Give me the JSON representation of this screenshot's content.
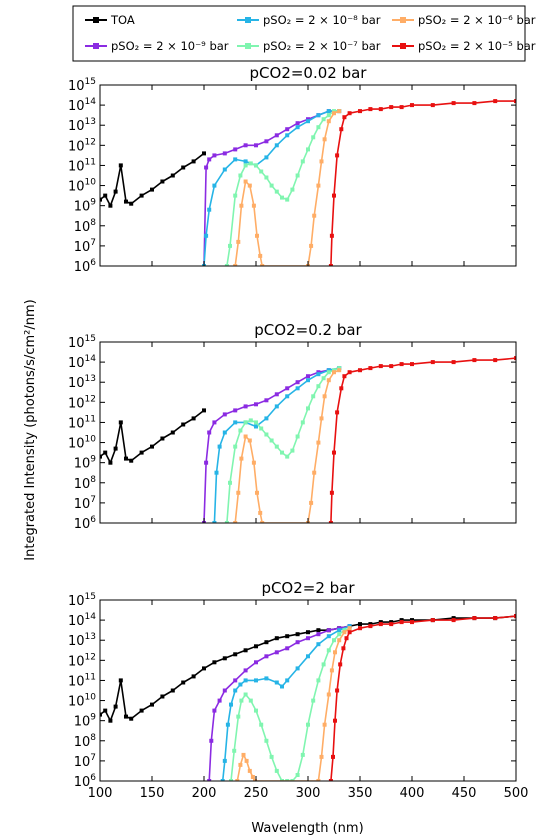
{
  "colors": {
    "toa": "#000000",
    "so2_2e9": "#8b2be2",
    "so2_2e8": "#26b4e6",
    "so2_2e7": "#80f5b0",
    "so2_2e6": "#ffad66",
    "so2_2e5": "#e81010"
  },
  "chart_data": {
    "type": "line",
    "xlabel": "Wavelength (nm)",
    "ylabel": "Integrated Intensity (photons/s/cm²/nm)",
    "xlim": [
      100,
      500
    ],
    "ylim": [
      1000000.0,
      1000000000000000.0
    ],
    "yscale": "log",
    "grid": false,
    "legend_placement": "top",
    "xticks": [
      "100",
      "150",
      "200",
      "250",
      "300",
      "350",
      "400",
      "450",
      "500"
    ],
    "ytick_base": "10",
    "ytick_exponents": [
      "6",
      "7",
      "8",
      "9",
      "10",
      "11",
      "12",
      "13",
      "14",
      "15"
    ],
    "legend": [
      {
        "key": "toa",
        "label": "TOA"
      },
      {
        "key": "so2_2e9",
        "label": "pSO₂ = 2 × 10⁻⁹ bar"
      },
      {
        "key": "so2_2e8",
        "label": "pSO₂ = 2 × 10⁻⁸ bar"
      },
      {
        "key": "so2_2e7",
        "label": "pSO₂ = 2 × 10⁻⁷ bar"
      },
      {
        "key": "so2_2e6",
        "label": "pSO₂ = 2 × 10⁻⁶ bar"
      },
      {
        "key": "so2_2e5",
        "label": "pSO₂ = 2 × 10⁻⁵ bar"
      }
    ],
    "panels": [
      {
        "title": "pCO2=0.02 bar",
        "series": [
          {
            "key": "toa",
            "x": [
              100,
              105,
              110,
              115,
              120,
              125,
              130,
              140,
              150,
              160,
              170,
              180,
              190,
              200
            ],
            "log10y": [
              9.3,
              9.5,
              9.0,
              9.7,
              11.0,
              9.2,
              9.1,
              9.5,
              9.8,
              10.2,
              10.5,
              10.9,
              11.2,
              11.6
            ]
          },
          {
            "key": "so2_2e9",
            "x": [
              200,
              202,
              205,
              210,
              220,
              230,
              240,
              250,
              260,
              270,
              280,
              290,
              300,
              310,
              320,
              330
            ],
            "log10y": [
              6.0,
              10.9,
              11.3,
              11.5,
              11.6,
              11.8,
              12.0,
              12.0,
              12.2,
              12.5,
              12.8,
              13.1,
              13.3,
              13.5,
              13.7,
              13.7
            ]
          },
          {
            "key": "so2_2e8",
            "x": [
              200,
              202,
              205,
              210,
              220,
              230,
              240,
              250,
              260,
              270,
              280,
              290,
              300,
              310,
              320,
              330
            ],
            "log10y": [
              6.0,
              7.5,
              8.8,
              10.0,
              10.8,
              11.3,
              11.2,
              11.0,
              11.4,
              12.0,
              12.5,
              12.9,
              13.2,
              13.5,
              13.7,
              13.7
            ]
          },
          {
            "key": "so2_2e7",
            "x": [
              222,
              225,
              230,
              235,
              240,
              245,
              250,
              255,
              260,
              265,
              270,
              275,
              280,
              285,
              290,
              295,
              300,
              305,
              310,
              315,
              320,
              325,
              330
            ],
            "log10y": [
              6.0,
              7.0,
              9.5,
              10.5,
              11.0,
              11.1,
              11.0,
              10.7,
              10.4,
              10.0,
              9.7,
              9.4,
              9.3,
              9.8,
              10.5,
              11.2,
              11.8,
              12.4,
              12.9,
              13.3,
              13.5,
              13.7,
              13.7
            ]
          },
          {
            "key": "so2_2e6",
            "x": [
              230,
              233,
              236,
              240,
              244,
              248,
              251,
              254,
              256,
              300,
              303,
              306,
              310,
              313,
              316,
              320,
              325,
              330
            ],
            "log10y": [
              6.0,
              7.2,
              9.0,
              10.2,
              10.0,
              9.0,
              7.5,
              6.5,
              6.0,
              6.0,
              7.0,
              8.5,
              10.0,
              11.2,
              12.3,
              13.2,
              13.6,
              13.7
            ]
          },
          {
            "key": "so2_2e5",
            "x": [
              322,
              323,
              325,
              328,
              332,
              335,
              340,
              350,
              360,
              370,
              380,
              390,
              400,
              420,
              440,
              460,
              480,
              500
            ],
            "log10y": [
              6.0,
              7.5,
              9.5,
              11.5,
              12.8,
              13.4,
              13.6,
              13.7,
              13.8,
              13.8,
              13.9,
              13.9,
              14.0,
              14.0,
              14.1,
              14.1,
              14.2,
              14.2
            ]
          }
        ]
      },
      {
        "title": "pCO2=0.2 bar",
        "series": [
          {
            "key": "toa",
            "x": [
              100,
              105,
              110,
              115,
              120,
              125,
              130,
              140,
              150,
              160,
              170,
              180,
              190,
              200
            ],
            "log10y": [
              9.3,
              9.5,
              9.0,
              9.7,
              11.0,
              9.2,
              9.1,
              9.5,
              9.8,
              10.2,
              10.5,
              10.9,
              11.2,
              11.6
            ]
          },
          {
            "key": "so2_2e9",
            "x": [
              200,
              202,
              205,
              210,
              220,
              230,
              240,
              250,
              260,
              270,
              280,
              290,
              300,
              310,
              320,
              330
            ],
            "log10y": [
              6.0,
              9.0,
              10.5,
              11.0,
              11.4,
              11.6,
              11.8,
              11.9,
              12.1,
              12.4,
              12.7,
              13.0,
              13.3,
              13.5,
              13.6,
              13.7
            ]
          },
          {
            "key": "so2_2e8",
            "x": [
              210,
              212,
              215,
              220,
              230,
              240,
              250,
              260,
              270,
              280,
              290,
              300,
              310,
              320,
              330
            ],
            "log10y": [
              6.0,
              8.5,
              9.8,
              10.5,
              11.0,
              11.0,
              10.8,
              11.2,
              11.8,
              12.3,
              12.7,
              13.1,
              13.4,
              13.6,
              13.7
            ]
          },
          {
            "key": "so2_2e7",
            "x": [
              222,
              225,
              230,
              235,
              240,
              245,
              250,
              255,
              260,
              265,
              270,
              275,
              280,
              285,
              290,
              295,
              300,
              305,
              310,
              315,
              320,
              325,
              330
            ],
            "log10y": [
              6.0,
              8.0,
              9.8,
              10.6,
              11.0,
              11.1,
              11.0,
              10.7,
              10.4,
              10.1,
              9.8,
              9.5,
              9.3,
              9.6,
              10.3,
              11.0,
              11.7,
              12.3,
              12.8,
              13.2,
              13.5,
              13.6,
              13.7
            ]
          },
          {
            "key": "so2_2e6",
            "x": [
              230,
              233,
              236,
              240,
              244,
              248,
              251,
              254,
              256,
              300,
              303,
              306,
              310,
              313,
              316,
              320,
              325,
              330
            ],
            "log10y": [
              6.0,
              7.5,
              9.2,
              10.3,
              10.1,
              9.0,
              7.5,
              6.5,
              6.0,
              6.0,
              7.0,
              8.5,
              10.0,
              11.2,
              12.3,
              13.1,
              13.5,
              13.6
            ]
          },
          {
            "key": "so2_2e5",
            "x": [
              322,
              323,
              325,
              328,
              332,
              335,
              340,
              350,
              360,
              370,
              380,
              390,
              400,
              420,
              440,
              460,
              480,
              500
            ],
            "log10y": [
              6.0,
              7.5,
              9.5,
              11.5,
              12.7,
              13.3,
              13.5,
              13.6,
              13.7,
              13.8,
              13.8,
              13.9,
              13.9,
              14.0,
              14.0,
              14.1,
              14.1,
              14.2
            ]
          }
        ]
      },
      {
        "title": "pCO2=2 bar",
        "series": [
          {
            "key": "toa",
            "x": [
              100,
              105,
              110,
              115,
              120,
              125,
              130,
              140,
              150,
              160,
              170,
              180,
              190,
              200,
              210,
              220,
              230,
              240,
              250,
              260,
              270,
              280,
              290,
              300,
              310,
              320,
              330,
              340,
              350,
              360,
              370,
              380,
              390,
              400,
              420,
              440,
              460,
              480,
              500
            ],
            "log10y": [
              9.3,
              9.5,
              9.0,
              9.7,
              11.0,
              9.2,
              9.1,
              9.5,
              9.8,
              10.2,
              10.5,
              10.9,
              11.2,
              11.6,
              11.9,
              12.1,
              12.3,
              12.5,
              12.7,
              12.9,
              13.1,
              13.2,
              13.3,
              13.4,
              13.5,
              13.5,
              13.6,
              13.7,
              13.8,
              13.8,
              13.9,
              13.9,
              14.0,
              14.0,
              14.0,
              14.1,
              14.1,
              14.1,
              14.2
            ]
          },
          {
            "key": "so2_2e9",
            "x": [
              205,
              207,
              210,
              215,
              220,
              230,
              240,
              250,
              260,
              270,
              280,
              290,
              300,
              310,
              320,
              330,
              340
            ],
            "log10y": [
              6.0,
              8.0,
              9.5,
              10.0,
              10.5,
              11.0,
              11.5,
              11.9,
              12.2,
              12.4,
              12.6,
              12.9,
              13.1,
              13.3,
              13.5,
              13.6,
              13.7
            ]
          },
          {
            "key": "so2_2e8",
            "x": [
              218,
              220,
              223,
              226,
              230,
              235,
              240,
              250,
              260,
              270,
              275,
              280,
              290,
              300,
              310,
              320,
              330,
              340
            ],
            "log10y": [
              6.0,
              7.0,
              8.8,
              9.8,
              10.5,
              10.8,
              11.0,
              11.0,
              11.1,
              10.9,
              10.7,
              11.0,
              11.6,
              12.2,
              12.8,
              13.2,
              13.5,
              13.7
            ]
          },
          {
            "key": "so2_2e7",
            "x": [
              226,
              229,
              233,
              236,
              240,
              245,
              250,
              255,
              260,
              265,
              270,
              275,
              280,
              285,
              290,
              295,
              300,
              305,
              310,
              315,
              320,
              325,
              330,
              335,
              340
            ],
            "log10y": [
              6.0,
              7.5,
              9.2,
              10.0,
              10.3,
              10.0,
              9.5,
              8.8,
              8.0,
              7.2,
              6.5,
              6.0,
              6.0,
              6.0,
              6.3,
              7.3,
              8.8,
              10.0,
              11.0,
              11.8,
              12.5,
              13.0,
              13.3,
              13.5,
              13.6
            ]
          },
          {
            "key": "so2_2e6",
            "x": [
              232,
              235,
              238,
              241,
              244,
              247,
              249,
              310,
              313,
              316,
              320,
              323,
              326,
              330,
              335,
              340
            ],
            "log10y": [
              6.0,
              6.8,
              7.3,
              7.0,
              6.5,
              6.2,
              6.0,
              6.0,
              7.2,
              8.8,
              10.3,
              11.5,
              12.4,
              13.0,
              13.4,
              13.6
            ]
          },
          {
            "key": "so2_2e5",
            "x": [
              322,
              324,
              326,
              328,
              331,
              334,
              337,
              340,
              350,
              360,
              370,
              380,
              390,
              400,
              420,
              440,
              460,
              480,
              500
            ],
            "log10y": [
              6.0,
              7.2,
              9.0,
              10.5,
              11.8,
              12.6,
              13.1,
              13.4,
              13.6,
              13.7,
              13.8,
              13.8,
              13.9,
              13.9,
              14.0,
              14.0,
              14.1,
              14.1,
              14.2
            ]
          }
        ]
      }
    ]
  }
}
